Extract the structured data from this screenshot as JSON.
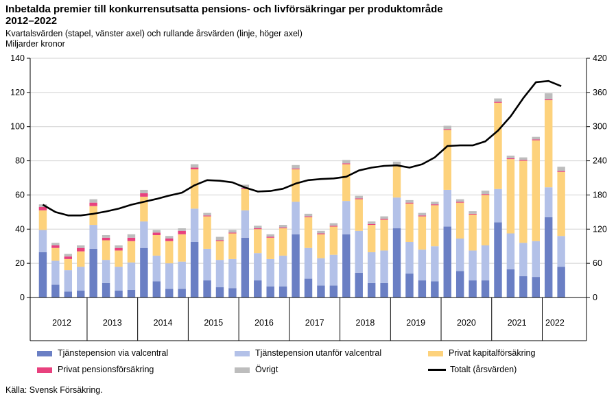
{
  "title": "Inbetalda premier till konkurrensutsatta pensions- och livförsäkringar per produktområde 2012–2022",
  "subtitle": "Kvartalsvärden (stapel, vänster axel) och rullande årsvärden (linje, höger axel)",
  "unit": "Miljarder kronor",
  "source": "Källa: Svensk Försäkring.",
  "chart_data": {
    "type": "bar",
    "stacked": true,
    "title": "Inbetalda premier till konkurrensutsatta pensions- och livförsäkringar per produktområde 2012–2022",
    "left_axis": {
      "min": 0,
      "max": 140,
      "ticks": [
        0,
        20,
        40,
        60,
        80,
        100,
        120,
        140
      ]
    },
    "right_axis": {
      "min": 0,
      "max": 420,
      "ticks": [
        0,
        60,
        120,
        180,
        240,
        300,
        360,
        420
      ]
    },
    "years": [
      "2012",
      "2013",
      "2014",
      "2015",
      "2016",
      "2017",
      "2018",
      "2019",
      "2020",
      "2021",
      "2022"
    ],
    "categories": [
      "2012Q1",
      "2012Q2",
      "2012Q3",
      "2012Q4",
      "2013Q1",
      "2013Q2",
      "2013Q3",
      "2013Q4",
      "2014Q1",
      "2014Q2",
      "2014Q3",
      "2014Q4",
      "2015Q1",
      "2015Q2",
      "2015Q3",
      "2015Q4",
      "2016Q1",
      "2016Q2",
      "2016Q3",
      "2016Q4",
      "2017Q1",
      "2017Q2",
      "2017Q3",
      "2017Q4",
      "2018Q1",
      "2018Q2",
      "2018Q3",
      "2018Q4",
      "2019Q1",
      "2019Q2",
      "2019Q3",
      "2019Q4",
      "2020Q1",
      "2020Q2",
      "2020Q3",
      "2020Q4",
      "2021Q1",
      "2021Q2",
      "2021Q3",
      "2021Q4",
      "2022Q1",
      "2022Q2"
    ],
    "series": [
      {
        "name": "Tjänstepension via valcentral",
        "color": "#6a7fc4",
        "axis": "left",
        "values": [
          26.5,
          7.5,
          3.5,
          4,
          28.5,
          8.5,
          4,
          4.5,
          29,
          9.5,
          5,
          5,
          32.5,
          10,
          6,
          5.5,
          35,
          10,
          6.5,
          6.5,
          37,
          11,
          7,
          7,
          37,
          14.5,
          8.5,
          8.5,
          40.5,
          14,
          10,
          9.5,
          41.5,
          15.5,
          10,
          10,
          44,
          16.5,
          12.5,
          12,
          47,
          18
        ]
      },
      {
        "name": "Tjänstepension utanför valcentral",
        "color": "#b3c1e8",
        "axis": "left",
        "values": [
          13,
          14,
          12.5,
          14,
          14,
          13.5,
          14,
          16,
          15.5,
          15,
          15,
          16,
          19.5,
          18.5,
          16,
          17,
          16,
          16,
          16,
          18,
          19,
          18,
          16,
          18,
          19.5,
          24.5,
          18,
          19,
          18,
          18.5,
          18,
          20.5,
          21.5,
          19,
          17.5,
          20.5,
          19.5,
          21,
          19.5,
          21,
          17.5,
          18
        ]
      },
      {
        "name": "Privat kapitalförsäkring",
        "color": "#fdd27c",
        "axis": "left",
        "values": [
          11.5,
          7.5,
          6.5,
          9,
          11,
          11.5,
          9.5,
          12.5,
          14.5,
          12,
          13,
          16,
          23,
          19,
          11,
          15,
          12.5,
          14,
          12.5,
          16,
          19,
          18,
          14,
          16.5,
          21.5,
          18.5,
          16,
          18,
          18.5,
          22.5,
          19.5,
          24,
          35,
          21,
          21,
          29.5,
          50.5,
          43.5,
          48,
          59,
          51,
          37.5
        ]
      },
      {
        "name": "Privat pensionsförsäkring",
        "color": "#e8417e",
        "axis": "left",
        "values": [
          2,
          1.5,
          1.5,
          2,
          2,
          1.5,
          1.5,
          2,
          2,
          1.5,
          1.5,
          2,
          1,
          0.5,
          0.5,
          0.5,
          0.5,
          0.5,
          0.5,
          0.5,
          0.5,
          0.5,
          0.5,
          0.5,
          0.5,
          0.5,
          0.5,
          0.5,
          0.5,
          0.5,
          0.5,
          0.5,
          0.5,
          0.5,
          0.5,
          0.5,
          0.5,
          0.5,
          0.5,
          0.5,
          0.5,
          0.5
        ]
      },
      {
        "name": "Övrigt",
        "color": "#bdbdbd",
        "axis": "left",
        "values": [
          1.5,
          1.5,
          1.5,
          1.5,
          2,
          1.5,
          1.5,
          2,
          2,
          1.5,
          1.5,
          1.5,
          2,
          1.5,
          2,
          1.5,
          2,
          1.5,
          1.5,
          1.5,
          2,
          1.5,
          1.5,
          1.5,
          2,
          1.5,
          1.5,
          1.5,
          2,
          1.5,
          1.5,
          1.5,
          2,
          1.5,
          1.5,
          2,
          2,
          1.5,
          1.5,
          1.5,
          3.5,
          2.5
        ]
      }
    ],
    "line": {
      "name": "Totalt (årsvärden)",
      "color": "#000000",
      "axis": "right",
      "values": [
        163,
        150,
        144,
        144,
        147,
        151,
        156,
        163,
        168,
        173,
        179,
        184,
        197,
        206,
        205,
        202,
        193,
        186,
        187,
        191,
        200,
        206,
        208,
        209,
        212,
        223,
        228,
        231,
        232,
        228,
        234,
        246,
        266,
        267,
        267,
        274,
        293,
        318,
        350,
        378,
        380,
        371
      ]
    },
    "legend": [
      {
        "label": "Tjänstepension via valcentral",
        "color": "#6a7fc4",
        "kind": "bar"
      },
      {
        "label": "Tjänstepension utanför valcentral",
        "color": "#b3c1e8",
        "kind": "bar"
      },
      {
        "label": "Privat kapitalförsäkring",
        "color": "#fdd27c",
        "kind": "bar"
      },
      {
        "label": "Privat pensionsförsäkring",
        "color": "#e8417e",
        "kind": "bar"
      },
      {
        "label": "Övrigt",
        "color": "#bdbdbd",
        "kind": "bar"
      },
      {
        "label": "Totalt (årsvärden)",
        "color": "#000000",
        "kind": "line"
      }
    ],
    "legend_placement": "bottom"
  }
}
